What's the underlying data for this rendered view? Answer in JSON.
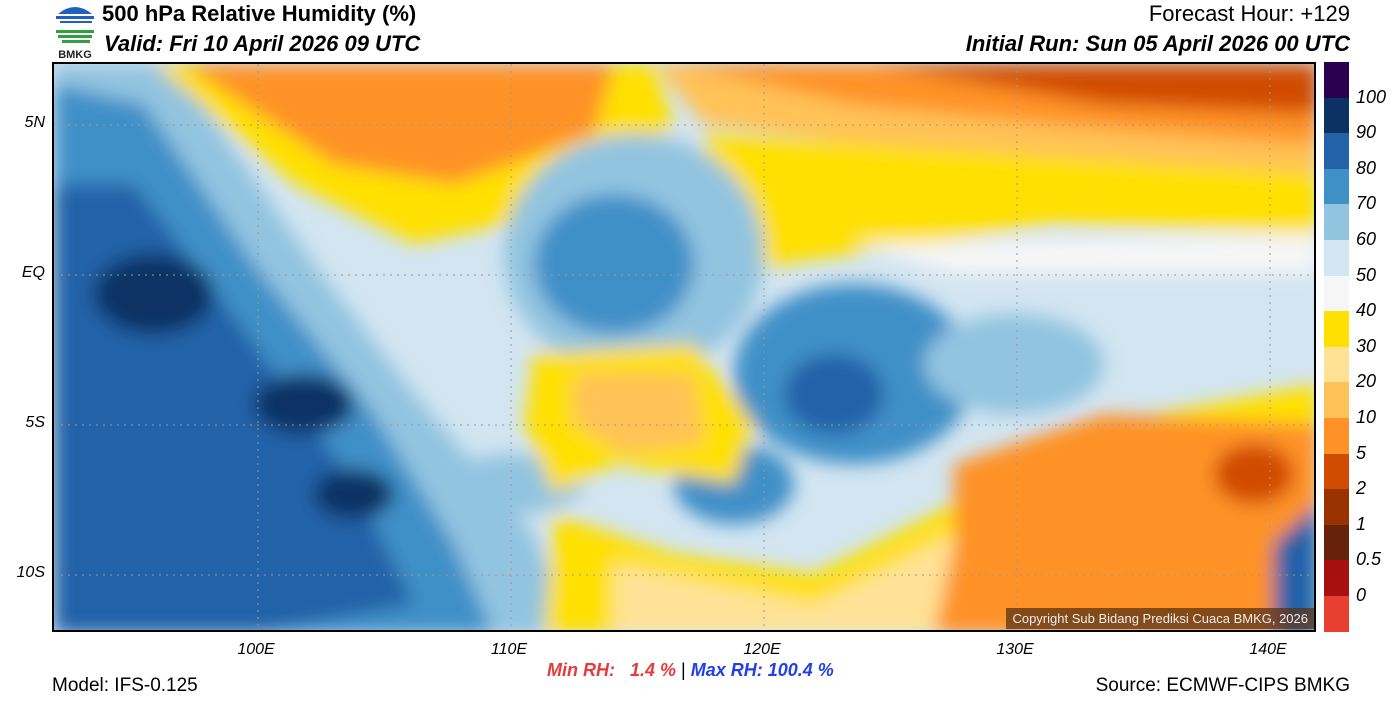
{
  "header": {
    "title": "500 hPa Relative Humidity (%)",
    "valid": "Valid: Fri 10 April 2026 09 UTC",
    "forecast_hour": "Forecast Hour: +129",
    "initial_run": "Initial Run: Sun 05 April 2026 00 UTC",
    "logo_text": "BMKG"
  },
  "axes": {
    "lat": [
      "5N",
      "EQ",
      "5S",
      "10S"
    ],
    "lon": [
      "100E",
      "110E",
      "120E",
      "130E",
      "140E"
    ]
  },
  "colorbar": {
    "labels": [
      "100",
      "90",
      "80",
      "70",
      "60",
      "50",
      "40",
      "30",
      "20",
      "10",
      "5",
      "2",
      "1",
      "0.5",
      "0"
    ],
    "colors": [
      "#2a0050",
      "#0c3264",
      "#2262a8",
      "#4090c8",
      "#92c4e0",
      "#d2e5f1",
      "#f6f6f6",
      "#ffe000",
      "#ffe296",
      "#ffc256",
      "#ff9226",
      "#d04c00",
      "#9a3200",
      "#66220a",
      "#a81010",
      "#e84030"
    ]
  },
  "footer": {
    "model": "Model: IFS-0.125",
    "min_rh_label": "Min RH:",
    "min_rh_value": "1.4 %",
    "separator": "|",
    "max_rh": "Max RH: 100.4 %",
    "source": "Source: ECMWF-CIPS BMKG",
    "copyright": "Copyright Sub Bidang Prediksi Cuaca BMKG, 2026"
  }
}
